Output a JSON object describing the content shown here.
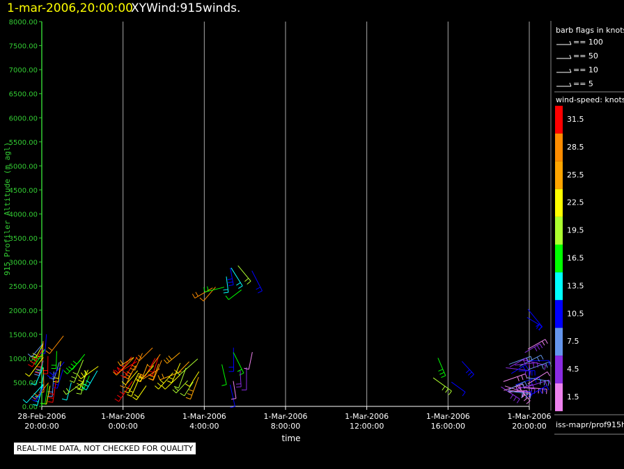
{
  "header": {
    "time": "1-mar-2006,20:00:00",
    "title": "XYWind:915winds."
  },
  "chart_data": {
    "type": "scatter",
    "ylabel": "915 Profiler Altitude (m agl)",
    "xlabel": "time",
    "ylim": [
      0,
      8000
    ],
    "yticks": [
      "0.00",
      "500.00",
      "1000.00",
      "1500.00",
      "2000.00",
      "2500.00",
      "3000.00",
      "3500.00",
      "4000.00",
      "4500.00",
      "5000.00",
      "5500.00",
      "6000.00",
      "6500.00",
      "7000.00",
      "7500.00",
      "8000.00"
    ],
    "xticks": [
      {
        "date": "28-Feb-2006",
        "time": "20:00:00"
      },
      {
        "date": "1-Mar-2006",
        "time": "0:00:00"
      },
      {
        "date": "1-Mar-2006",
        "time": "4:00:00"
      },
      {
        "date": "1-Mar-2006",
        "time": "8:00:00"
      },
      {
        "date": "1-Mar-2006",
        "time": "12:00:00"
      },
      {
        "date": "1-Mar-2006",
        "time": "16:00:00"
      },
      {
        "date": "1-Mar-2006",
        "time": "20:00:00"
      }
    ],
    "grid": "vertical",
    "colors": {
      "axis": "#33cc33",
      "grid": "#aaaaaa"
    },
    "barb_clusters": [
      {
        "t_hours": 0.0,
        "alt_min": 400,
        "alt_max": 1550,
        "count": 28,
        "colors": [
          "#ff0000",
          "#ff8c00",
          "#ffff00",
          "#00ff00",
          "#00ffff",
          "#0000ff",
          "#6495ed"
        ],
        "direction_deg": 200
      },
      {
        "t_hours": 1.8,
        "alt_min": 450,
        "alt_max": 1150,
        "count": 10,
        "colors": [
          "#adff2f",
          "#00ff00",
          "#00ffff",
          "#ffff00"
        ],
        "direction_deg": 210
      },
      {
        "t_hours": 4.8,
        "alt_min": 400,
        "alt_max": 1250,
        "count": 22,
        "colors": [
          "#ff0000",
          "#ff8c00",
          "#ffa500",
          "#ffff00"
        ],
        "direction_deg": 220
      },
      {
        "t_hours": 6.8,
        "alt_min": 500,
        "alt_max": 1150,
        "count": 12,
        "colors": [
          "#ffff00",
          "#ffa500",
          "#adff2f"
        ],
        "direction_deg": 225
      },
      {
        "t_hours": 8.8,
        "alt_min": 2400,
        "alt_max": 2650,
        "count": 4,
        "colors": [
          "#ff8c00",
          "#00ff00"
        ],
        "direction_deg": 240
      },
      {
        "t_hours": 9.4,
        "alt_min": 2450,
        "alt_max": 3000,
        "count": 5,
        "colors": [
          "#0000ff",
          "#00ffff",
          "#adff2f"
        ],
        "direction_deg": 160
      },
      {
        "t_hours": 9.3,
        "alt_min": 450,
        "alt_max": 1300,
        "count": 8,
        "colors": [
          "#0000ff",
          "#00ff00",
          "#8a2be2",
          "#ee82ee"
        ],
        "direction_deg": 170
      },
      {
        "t_hours": 19.6,
        "alt_min": 500,
        "alt_max": 1200,
        "count": 4,
        "colors": [
          "#0000ff",
          "#00ff00",
          "#adff2f"
        ],
        "direction_deg": 150
      },
      {
        "t_hours": 22.3,
        "alt_min": 400,
        "alt_max": 600,
        "count": 4,
        "colors": [
          "#8a2be2",
          "#ee82ee"
        ],
        "direction_deg": 120
      },
      {
        "t_hours": 23.2,
        "alt_min": 200,
        "alt_max": 1200,
        "count": 26,
        "colors": [
          "#ee82ee",
          "#8a2be2",
          "#6495ed",
          "#0000ff"
        ],
        "direction_deg": 80
      },
      {
        "t_hours": 23.9,
        "alt_min": 1800,
        "alt_max": 2200,
        "count": 2,
        "colors": [
          "#0000ff"
        ],
        "direction_deg": 140
      }
    ]
  },
  "legend": {
    "barb_title": "barb flags in knots",
    "barbs": [
      "== 100",
      "== 50",
      "== 10",
      "== 5"
    ],
    "speed_title": "wind-speed: knots",
    "speed_bins": [
      {
        "label": "31.5",
        "color": "#ff0000"
      },
      {
        "label": "28.5",
        "color": "#ff8c00"
      },
      {
        "label": "25.5",
        "color": "#ffa500"
      },
      {
        "label": "22.5",
        "color": "#ffff00"
      },
      {
        "label": "19.5",
        "color": "#adff2f"
      },
      {
        "label": "16.5",
        "color": "#00ff00"
      },
      {
        "label": "13.5",
        "color": "#00ffff"
      },
      {
        "label": "10.5",
        "color": "#0000ff"
      },
      {
        "label": "7.5",
        "color": "#6495ed"
      },
      {
        "label": "4.5",
        "color": "#8a2be2"
      },
      {
        "label": "1.5",
        "color": "#ee82ee"
      }
    ],
    "footer": "iss-mapr/prof915h"
  },
  "note": "REAL-TIME DATA, NOT CHECKED FOR QUALITY"
}
